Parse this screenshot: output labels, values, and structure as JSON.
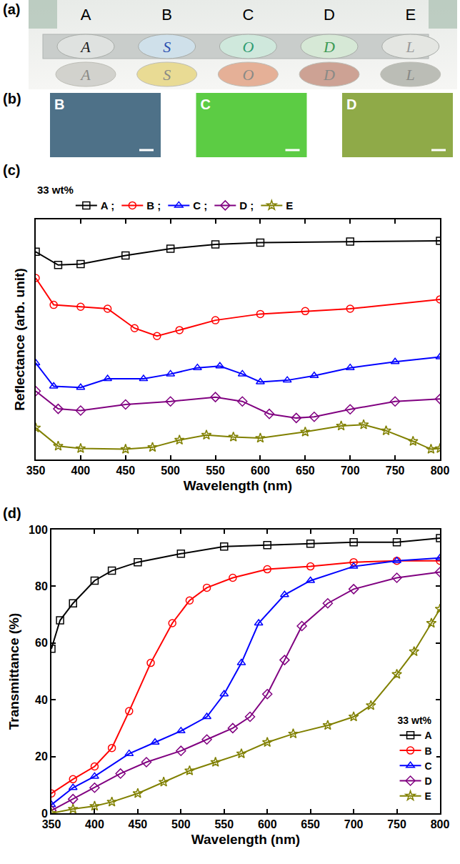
{
  "panel_labels": [
    "(a)",
    "(b)",
    "(c)",
    "(d)"
  ],
  "photo_a": {
    "columns": [
      {
        "label": "A",
        "letter": "A",
        "disc_color": "#dfe2e0",
        "letter_color": "#1a1a1a",
        "reflection_color": "#cfcfca"
      },
      {
        "label": "B",
        "letter": "S",
        "disc_color": "#cfe0ea",
        "letter_color": "#2a4fb0",
        "reflection_color": "#e8d98a"
      },
      {
        "label": "C",
        "letter": "O",
        "disc_color": "#cfe8dc",
        "letter_color": "#2e9c72",
        "reflection_color": "#e4a98e"
      },
      {
        "label": "D",
        "letter": "D",
        "disc_color": "#d6e8d6",
        "letter_color": "#3d9a55",
        "reflection_color": "#c99a8a"
      },
      {
        "label": "E",
        "letter": "L",
        "disc_color": "#e4e6e2",
        "letter_color": "#9a9a9a",
        "reflection_color": "#b5b8b0"
      }
    ]
  },
  "photo_b": {
    "swatches": [
      {
        "label": "B",
        "color": "#4e7188"
      },
      {
        "label": "C",
        "color": "#5ccc44"
      },
      {
        "label": "D",
        "color": "#8faa48"
      }
    ]
  },
  "chart_data": [
    {
      "type": "line",
      "annotations": [
        "33 wt%"
      ],
      "x_label": "Wavelength (nm)",
      "y_label": "Reflectance (arb. unit)",
      "xlim": [
        350,
        800
      ],
      "xticks": [
        350,
        400,
        450,
        500,
        550,
        600,
        650,
        700,
        750,
        800
      ],
      "ylim": [
        0,
        100
      ],
      "yticks": [],
      "tick_labels": "x",
      "grid": false,
      "legend": "top",
      "series": [
        {
          "name": "A ;",
          "color": "#000000",
          "marker": "square-open",
          "line_style": "solid",
          "x": [
            350,
            375,
            400,
            450,
            500,
            550,
            600,
            700,
            800
          ],
          "values": [
            86.5,
            81,
            81.4,
            85,
            87.8,
            89.6,
            90.3,
            90.8,
            91.1
          ]
        },
        {
          "name": "B ;",
          "color": "#ff0000",
          "marker": "circle-open",
          "line_style": "solid",
          "x": [
            350,
            370,
            400,
            430,
            460,
            485,
            510,
            550,
            600,
            650,
            700,
            800
          ],
          "values": [
            75.6,
            64.4,
            63.6,
            62.8,
            54.7,
            51.4,
            53.9,
            58,
            60.6,
            61.8,
            62.8,
            66.7
          ]
        },
        {
          "name": "C ;",
          "color": "#0000ff",
          "marker": "triangle-up-open",
          "line_style": "solid",
          "x": [
            350,
            370,
            400,
            430,
            470,
            500,
            530,
            555,
            580,
            600,
            630,
            660,
            700,
            750,
            800
          ],
          "values": [
            40.2,
            30.5,
            30,
            33.6,
            33.6,
            35.6,
            38.2,
            38.9,
            35.6,
            32.3,
            33,
            34.9,
            38.2,
            40.7,
            42.7
          ]
        },
        {
          "name": "D ;",
          "color": "#800080",
          "marker": "diamond-open",
          "line_style": "solid",
          "x": [
            350,
            375,
            400,
            450,
            500,
            550,
            580,
            610,
            640,
            660,
            700,
            750,
            800
          ],
          "values": [
            28.5,
            21.1,
            20.4,
            22.9,
            24.2,
            26,
            24.2,
            19,
            17.3,
            17.8,
            20.9,
            24.2,
            25.2
          ]
        },
        {
          "name": "E",
          "color": "#808000",
          "marker": "star-open",
          "line_style": "solid",
          "x": [
            350,
            375,
            400,
            450,
            480,
            510,
            540,
            570,
            600,
            650,
            690,
            715,
            740,
            770,
            790,
            800
          ],
          "values": [
            13.2,
            5.6,
            4.6,
            4.3,
            5.1,
            8.1,
            10.2,
            9.4,
            8.9,
            11.5,
            14,
            14.5,
            12,
            7.6,
            4.3,
            4.6
          ]
        }
      ]
    },
    {
      "type": "line",
      "annotations": [
        "33 wt%"
      ],
      "x_label": "Wavelength (nm)",
      "y_label": "Transmittance (%)",
      "xlim": [
        350,
        800
      ],
      "xticks": [
        350,
        400,
        450,
        500,
        550,
        600,
        650,
        700,
        750,
        800
      ],
      "ylim": [
        0,
        100
      ],
      "yticks": [
        0,
        20,
        40,
        60,
        80,
        100
      ],
      "grid": false,
      "legend": "bottom right",
      "series": [
        {
          "name": "A",
          "color": "#000000",
          "marker": "square-open",
          "line_style": "solid",
          "x": [
            350,
            360,
            375,
            400,
            420,
            450,
            500,
            550,
            600,
            650,
            700,
            750,
            800
          ],
          "values": [
            58,
            68,
            74,
            82,
            85.5,
            88.5,
            91.5,
            94,
            94.5,
            95,
            95.5,
            95.5,
            97
          ]
        },
        {
          "name": "B",
          "color": "#ff0000",
          "marker": "circle-open",
          "line_style": "solid",
          "x": [
            350,
            375,
            400,
            420,
            440,
            465,
            490,
            510,
            530,
            560,
            600,
            650,
            700,
            750,
            800
          ],
          "values": [
            7,
            12,
            16.5,
            23,
            36,
            53,
            67,
            75,
            79.5,
            83,
            86,
            87,
            88.5,
            89,
            89
          ]
        },
        {
          "name": "C",
          "color": "#0000ff",
          "marker": "triangle-up-open",
          "line_style": "solid",
          "x": [
            350,
            375,
            400,
            440,
            470,
            500,
            530,
            550,
            570,
            590,
            620,
            650,
            700,
            750,
            800
          ],
          "values": [
            3,
            9,
            13,
            21,
            25,
            29,
            34,
            42,
            53,
            67,
            77,
            82,
            87,
            89,
            90
          ]
        },
        {
          "name": "D",
          "color": "#800080",
          "marker": "diamond-open",
          "line_style": "solid",
          "x": [
            350,
            375,
            400,
            430,
            460,
            500,
            530,
            560,
            580,
            600,
            620,
            640,
            670,
            700,
            750,
            800
          ],
          "values": [
            1,
            5,
            9,
            14,
            18,
            22,
            26,
            30,
            34,
            42,
            54,
            66,
            74,
            79,
            83,
            85
          ]
        },
        {
          "name": "E",
          "color": "#808000",
          "marker": "star-open",
          "line_style": "solid",
          "x": [
            350,
            375,
            400,
            420,
            450,
            480,
            510,
            540,
            570,
            600,
            630,
            670,
            700,
            720,
            750,
            770,
            790,
            800
          ],
          "values": [
            0,
            1.5,
            2.5,
            4,
            7,
            11,
            15,
            18,
            21,
            25,
            28,
            31,
            34,
            38,
            49,
            57,
            67,
            72
          ]
        }
      ]
    }
  ]
}
